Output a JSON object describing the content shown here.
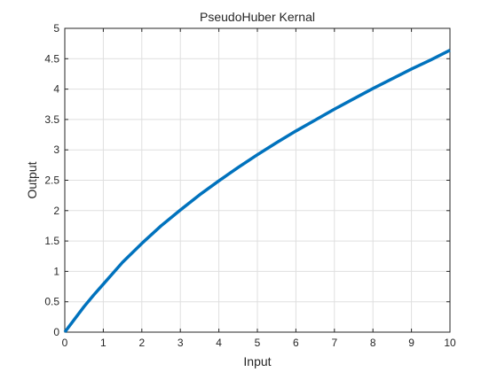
{
  "chart_data": {
    "type": "line",
    "title": "PseudoHuber Kernal",
    "xlabel": "Input",
    "ylabel": "Output",
    "xlim": [
      0,
      10
    ],
    "ylim": [
      0,
      5
    ],
    "xticks": [
      0,
      1,
      2,
      3,
      4,
      5,
      6,
      7,
      8,
      9,
      10
    ],
    "yticks": [
      0,
      0.5,
      1,
      1.5,
      2,
      2.5,
      3,
      3.5,
      4,
      4.5,
      5
    ],
    "grid": true,
    "box": true,
    "legend": "none",
    "series": [
      {
        "color": "#0072bd",
        "x": [
          0,
          0.25,
          0.5,
          0.75,
          1,
          1.5,
          2,
          2.5,
          3,
          3.5,
          4,
          4.5,
          5,
          5.5,
          6,
          6.5,
          7,
          7.5,
          8,
          8.5,
          9,
          9.5,
          10
        ],
        "y": [
          0,
          0.21,
          0.42,
          0.61,
          0.79,
          1.15,
          1.46,
          1.75,
          2.01,
          2.26,
          2.49,
          2.71,
          2.92,
          3.12,
          3.31,
          3.49,
          3.67,
          3.84,
          4.01,
          4.17,
          4.33,
          4.48,
          4.64
        ]
      }
    ]
  }
}
